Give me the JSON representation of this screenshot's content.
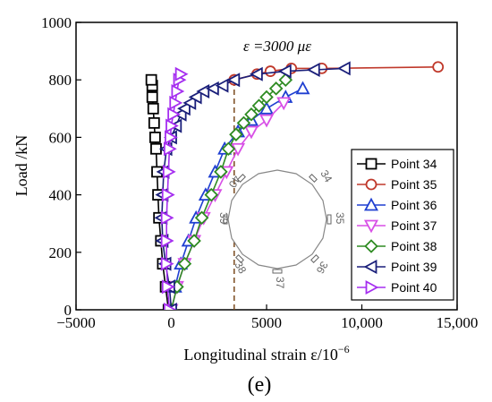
{
  "chart_data": {
    "type": "line",
    "xlabel": "Longitudinal strain ε/10",
    "xlabel_exp": "−6",
    "ylabel": "Load /kN",
    "xlim": [
      -5000,
      15000
    ],
    "ylim": [
      0,
      1000
    ],
    "xticks": [
      -5000,
      0,
      5000,
      10000,
      15000
    ],
    "xtick_labels": [
      "−5000",
      "0",
      "5000",
      "10,000",
      "15,000"
    ],
    "yticks": [
      0,
      200,
      400,
      600,
      800,
      1000
    ],
    "ytick_labels": [
      "0",
      "200",
      "400",
      "600",
      "800",
      "1000"
    ],
    "annotation": "ε =3000 με",
    "reference_line_x": 3300,
    "legend_position": "right",
    "panel_label": "(e)",
    "inset_labels": [
      "34",
      "35",
      "36",
      "37",
      "38",
      "39",
      "40"
    ],
    "series": [
      {
        "name": "Point 34",
        "marker": "square",
        "color": "#000000",
        "x": [
          -150,
          -300,
          -450,
          -550,
          -650,
          -700,
          -750,
          -800,
          -850,
          -900,
          -950,
          -1000,
          -1000,
          -1050
        ],
        "y": [
          0,
          80,
          160,
          240,
          320,
          400,
          480,
          560,
          600,
          650,
          700,
          740,
          780,
          800
        ]
      },
      {
        "name": "Point 35",
        "marker": "circle",
        "color": "#c0392b",
        "x": [
          3300,
          4500,
          5200,
          6300,
          7900,
          14000
        ],
        "y": [
          800,
          820,
          830,
          840,
          840,
          845
        ]
      },
      {
        "name": "Point 36",
        "marker": "triangle-up",
        "color": "#1f3fd1",
        "x": [
          200,
          500,
          900,
          1300,
          1800,
          2300,
          2800,
          3500,
          4200,
          5000,
          6000,
          6900
        ],
        "y": [
          80,
          160,
          240,
          320,
          400,
          480,
          560,
          620,
          660,
          700,
          740,
          770
        ]
      },
      {
        "name": "Point 37",
        "marker": "triangle-down",
        "color": "#d84fe6",
        "x": [
          0,
          300,
          700,
          1200,
          1700,
          2300,
          2900,
          3500,
          4200,
          5000,
          5900
        ],
        "y": [
          0,
          80,
          160,
          240,
          320,
          400,
          480,
          560,
          620,
          660,
          720
        ]
      },
      {
        "name": "Point 38",
        "marker": "diamond",
        "color": "#2e8b22",
        "x": [
          0,
          300,
          700,
          1200,
          1600,
          2100,
          2600,
          3000,
          3400,
          3800,
          4200,
          4600,
          5000,
          5500,
          6000
        ],
        "y": [
          0,
          80,
          160,
          240,
          320,
          400,
          480,
          560,
          610,
          650,
          680,
          710,
          740,
          770,
          800
        ]
      },
      {
        "name": "Point 39",
        "marker": "triangle-left",
        "color": "#1a1f7a",
        "x": [
          0,
          -100,
          -300,
          -450,
          -500,
          -450,
          -400,
          -250,
          0,
          250,
          500,
          700,
          1000,
          1300,
          1700,
          2200,
          2700,
          3300,
          4500,
          6000,
          7500,
          9100
        ],
        "y": [
          0,
          80,
          160,
          240,
          320,
          400,
          480,
          560,
          600,
          640,
          680,
          700,
          720,
          740,
          760,
          770,
          780,
          800,
          820,
          830,
          835,
          840
        ]
      },
      {
        "name": "Point 40",
        "marker": "triangle-right",
        "color": "#a52ef0",
        "x": [
          -100,
          -200,
          -250,
          -250,
          -250,
          -200,
          -150,
          -100,
          -50,
          0,
          100,
          200,
          300,
          400,
          500
        ],
        "y": [
          0,
          80,
          160,
          240,
          320,
          400,
          480,
          560,
          600,
          640,
          680,
          720,
          760,
          800,
          820
        ]
      }
    ]
  }
}
